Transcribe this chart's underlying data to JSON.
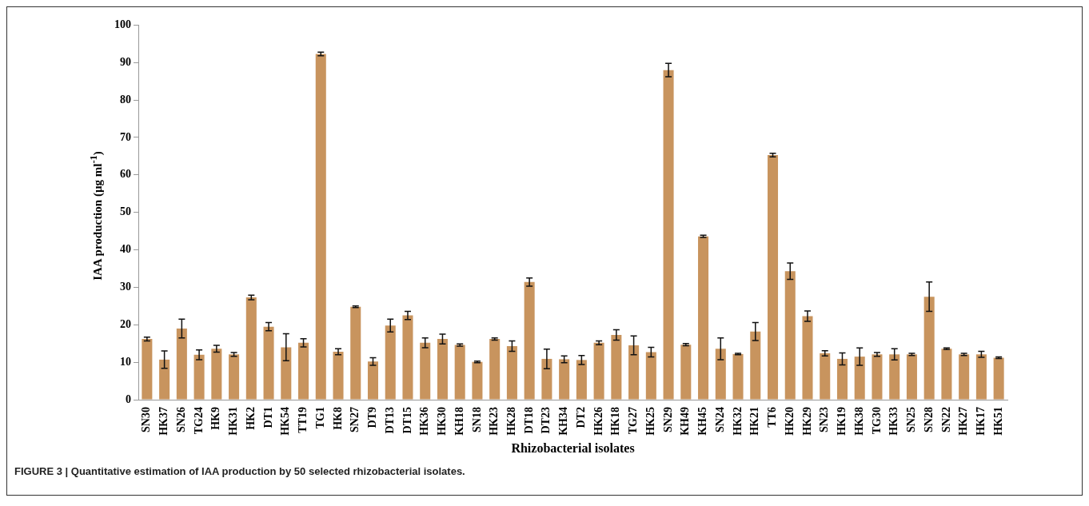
{
  "chart_data": {
    "type": "bar",
    "xlabel": "Rhizobacterial isolates",
    "ylabel": "IAA production (µg ml$^{-1}$)",
    "categories": [
      "SN30",
      "HK37",
      "SN26",
      "TG24",
      "HK9",
      "HK31",
      "HK2",
      "DT1",
      "HK54",
      "TT19",
      "TG1",
      "HK8",
      "SN27",
      "DT9",
      "DT13",
      "DT15",
      "HK36",
      "HK30",
      "KH18",
      "SN18",
      "HK23",
      "HK28",
      "DT18",
      "DT23",
      "KH34",
      "DT2",
      "HK26",
      "HK18",
      "TG27",
      "HK25",
      "SN29",
      "KH49",
      "KH45",
      "SN24",
      "HK32",
      "HK21",
      "TT6",
      "HK20",
      "HK29",
      "SN23",
      "HK19",
      "HK38",
      "TG30",
      "HK33",
      "SN25",
      "SN28",
      "SN22",
      "HK27",
      "HK17",
      "HK51"
    ],
    "values": [
      16.2,
      10.7,
      19,
      12,
      13.6,
      12.1,
      27.3,
      19.5,
      14,
      15.2,
      92.3,
      12.8,
      24.8,
      10.2,
      19.8,
      22.5,
      15.2,
      16.2,
      14.6,
      10.1,
      16.2,
      14.3,
      31.4,
      10.9,
      10.8,
      10.6,
      15.2,
      17.3,
      14.5,
      12.7,
      88,
      14.7,
      43.6,
      13.6,
      12.2,
      18.2,
      65.3,
      34.3,
      22.3,
      12.4,
      10.9,
      11.5,
      12.1,
      12.1,
      12.1,
      27.5,
      13.6,
      12.1,
      12.1,
      11.2
    ],
    "errors": [
      0.5,
      2.3,
      2.5,
      1.3,
      0.9,
      0.5,
      0.6,
      1.1,
      3.6,
      1.1,
      0.5,
      0.8,
      0.2,
      1,
      1.7,
      1.1,
      1.3,
      1.3,
      0.3,
      0.2,
      0.3,
      1.4,
      1.1,
      2.6,
      0.9,
      1.2,
      0.5,
      1.4,
      2.5,
      1.3,
      1.8,
      0.3,
      0.3,
      2.9,
      0.2,
      2.4,
      0.5,
      2.2,
      1.4,
      0.7,
      1.6,
      2.3,
      0.5,
      1.5,
      0.3,
      3.9,
      0.2,
      0.3,
      0.8,
      0.2
    ],
    "color": "#c8945e",
    "ylim": [
      0,
      100
    ],
    "yticks": [
      0,
      10,
      20,
      30,
      40,
      50,
      60,
      70,
      80,
      90,
      100
    ],
    "grid": false,
    "legend": false,
    "annotations": [
      "FIGURE 3 | Quantitative estimation of IAA production by 50 selected rhizobacterial isolates."
    ]
  }
}
